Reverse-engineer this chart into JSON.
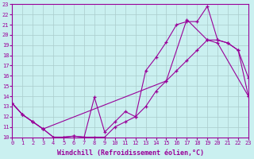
{
  "xlabel": "Windchill (Refroidissement éolien,°C)",
  "ylabel": "",
  "bg_color": "#caf0f0",
  "line_color": "#990099",
  "grid_color": "#aacccc",
  "xlim": [
    0,
    23
  ],
  "ylim": [
    10,
    23
  ],
  "xticks": [
    0,
    1,
    2,
    3,
    4,
    5,
    6,
    7,
    8,
    9,
    10,
    11,
    12,
    13,
    14,
    15,
    16,
    17,
    18,
    19,
    20,
    21,
    22,
    23
  ],
  "yticks": [
    10,
    11,
    12,
    13,
    14,
    15,
    16,
    17,
    18,
    19,
    20,
    21,
    22,
    23
  ],
  "line1_x": [
    0,
    1,
    2,
    3,
    4,
    5,
    6,
    7,
    8,
    9,
    10,
    11,
    12,
    13,
    14,
    15,
    16,
    17,
    18,
    19,
    20,
    21,
    22,
    23
  ],
  "line1_y": [
    13.3,
    12.2,
    11.5,
    10.8,
    10.0,
    10.0,
    10.1,
    10.0,
    13.9,
    10.5,
    11.5,
    12.5,
    12.0,
    16.5,
    17.8,
    19.3,
    21.0,
    21.3,
    21.3,
    22.8,
    19.5,
    19.2,
    18.5,
    15.8
  ],
  "line2_x": [
    0,
    1,
    2,
    3,
    4,
    5,
    6,
    7,
    8,
    9,
    10,
    11,
    12,
    13,
    14,
    15,
    16,
    17,
    18,
    19,
    20,
    21,
    22,
    23
  ],
  "line2_y": [
    13.3,
    12.2,
    11.5,
    10.8,
    10.0,
    10.0,
    10.1,
    10.0,
    10.0,
    10.0,
    11.0,
    11.5,
    12.0,
    13.0,
    14.5,
    15.5,
    16.5,
    17.5,
    18.5,
    19.5,
    19.5,
    19.2,
    18.5,
    14.0
  ],
  "line3_x": [
    0,
    1,
    2,
    3,
    15,
    17,
    19,
    20,
    23
  ],
  "line3_y": [
    13.3,
    12.2,
    11.5,
    10.8,
    15.5,
    21.5,
    19.5,
    19.2,
    14.0
  ]
}
